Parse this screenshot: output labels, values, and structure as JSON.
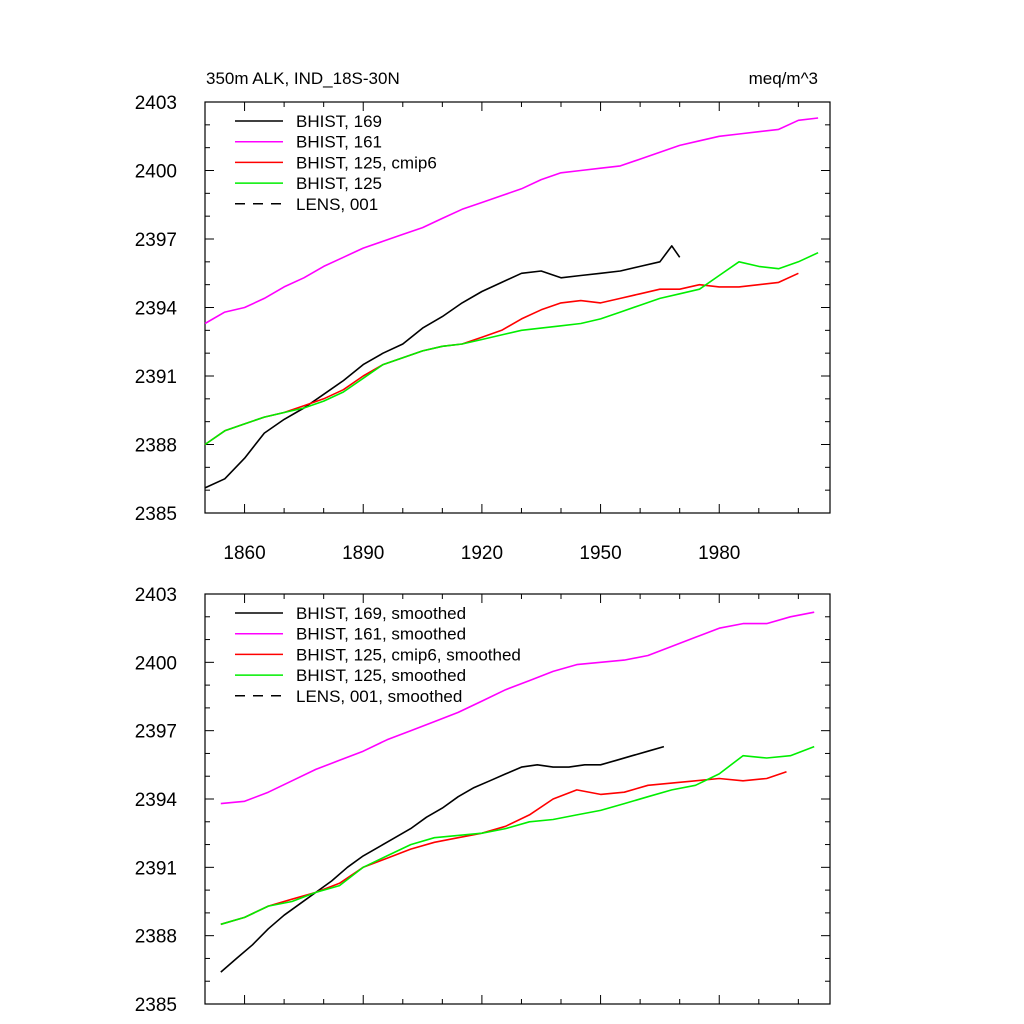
{
  "figure": {
    "title_left": "350m ALK, IND_18S-30N",
    "title_right": "meq/m^3"
  },
  "chart_data": [
    {
      "type": "line",
      "title": "350m ALK, IND_18S-30N",
      "units": "meq/m^3",
      "xlim": [
        1850,
        2008
      ],
      "ylim": [
        2385,
        2403
      ],
      "xticks": [
        1860,
        1890,
        1920,
        1950,
        1980
      ],
      "yticks": [
        2385,
        2388,
        2391,
        2394,
        2397,
        2400,
        2403
      ],
      "show_xtick_labels": true,
      "legend_position": "top-left",
      "grid": false,
      "series": [
        {
          "name": "BHIST, 169",
          "color": "#000000",
          "dash": "solid",
          "x": [
            1850,
            1855,
            1860,
            1865,
            1870,
            1875,
            1880,
            1885,
            1890,
            1895,
            1900,
            1905,
            1910,
            1915,
            1920,
            1925,
            1930,
            1935,
            1940,
            1945,
            1950,
            1955,
            1960,
            1965,
            1968,
            1970
          ],
          "y": [
            2386.1,
            2386.5,
            2387.4,
            2388.5,
            2389.1,
            2389.6,
            2390.2,
            2390.8,
            2391.5,
            2392.0,
            2392.4,
            2393.1,
            2393.6,
            2394.2,
            2394.7,
            2395.1,
            2395.5,
            2395.6,
            2395.3,
            2395.4,
            2395.5,
            2395.6,
            2395.8,
            2396.0,
            2396.7,
            2396.2
          ]
        },
        {
          "name": "BHIST, 161",
          "color": "#ff00ff",
          "dash": "solid",
          "x": [
            1850,
            1855,
            1860,
            1865,
            1870,
            1875,
            1880,
            1885,
            1890,
            1895,
            1900,
            1905,
            1910,
            1915,
            1920,
            1925,
            1930,
            1935,
            1940,
            1945,
            1950,
            1955,
            1960,
            1965,
            1970,
            1975,
            1980,
            1985,
            1990,
            1995,
            2000,
            2005
          ],
          "y": [
            2393.3,
            2393.8,
            2394.0,
            2394.4,
            2394.9,
            2395.3,
            2395.8,
            2396.2,
            2396.6,
            2396.9,
            2397.2,
            2397.5,
            2397.9,
            2398.3,
            2398.6,
            2398.9,
            2399.2,
            2399.6,
            2399.9,
            2400.0,
            2400.1,
            2400.2,
            2400.5,
            2400.8,
            2401.1,
            2401.3,
            2401.5,
            2401.6,
            2401.7,
            2401.8,
            2402.2,
            2402.3
          ]
        },
        {
          "name": "BHIST, 125, cmip6",
          "color": "#ff0000",
          "dash": "solid",
          "x": [
            1850,
            1855,
            1860,
            1865,
            1870,
            1875,
            1880,
            1885,
            1890,
            1895,
            1900,
            1905,
            1910,
            1915,
            1920,
            1925,
            1930,
            1935,
            1940,
            1945,
            1950,
            1955,
            1960,
            1965,
            1970,
            1975,
            1980,
            1985,
            1990,
            1995,
            2000
          ],
          "y": [
            2388.0,
            2388.6,
            2388.9,
            2389.2,
            2389.4,
            2389.7,
            2390.0,
            2390.4,
            2391.0,
            2391.5,
            2391.8,
            2392.1,
            2392.3,
            2392.4,
            2392.7,
            2393.0,
            2393.5,
            2393.9,
            2394.2,
            2394.3,
            2394.2,
            2394.4,
            2394.6,
            2394.8,
            2394.8,
            2395.0,
            2394.9,
            2394.9,
            2395.0,
            2395.1,
            2395.5
          ]
        },
        {
          "name": "BHIST, 125",
          "color": "#00ee00",
          "dash": "solid",
          "x": [
            1850,
            1855,
            1860,
            1865,
            1870,
            1875,
            1880,
            1885,
            1890,
            1895,
            1900,
            1905,
            1910,
            1915,
            1920,
            1925,
            1930,
            1935,
            1940,
            1945,
            1950,
            1955,
            1960,
            1965,
            1970,
            1975,
            1980,
            1985,
            1990,
            1995,
            2000,
            2005
          ],
          "y": [
            2388.0,
            2388.6,
            2388.9,
            2389.2,
            2389.4,
            2389.6,
            2389.9,
            2390.3,
            2390.9,
            2391.5,
            2391.8,
            2392.1,
            2392.3,
            2392.4,
            2392.6,
            2392.8,
            2393.0,
            2393.1,
            2393.2,
            2393.3,
            2393.5,
            2393.8,
            2394.1,
            2394.4,
            2394.6,
            2394.8,
            2395.4,
            2396.0,
            2395.8,
            2395.7,
            2396.0,
            2396.4
          ]
        }
      ],
      "legend": [
        {
          "name": "BHIST, 169",
          "color": "#000000",
          "dash": "solid"
        },
        {
          "name": "BHIST, 161",
          "color": "#ff00ff",
          "dash": "solid"
        },
        {
          "name": "BHIST, 125, cmip6",
          "color": "#ff0000",
          "dash": "solid"
        },
        {
          "name": "BHIST, 125",
          "color": "#00ee00",
          "dash": "solid"
        },
        {
          "name": "LENS, 001",
          "color": "#000000",
          "dash": "dashed"
        }
      ]
    },
    {
      "type": "line",
      "xlim": [
        1850,
        2008
      ],
      "ylim": [
        2385,
        2403
      ],
      "xticks": [
        1860,
        1890,
        1920,
        1950,
        1980
      ],
      "yticks": [
        2385,
        2388,
        2391,
        2394,
        2397,
        2400,
        2403
      ],
      "show_xtick_labels": false,
      "legend_position": "top-left",
      "grid": false,
      "series": [
        {
          "name": "BHIST, 169, smoothed",
          "color": "#000000",
          "dash": "solid",
          "x": [
            1854,
            1858,
            1862,
            1866,
            1870,
            1874,
            1878,
            1882,
            1886,
            1890,
            1894,
            1898,
            1902,
            1906,
            1910,
            1914,
            1918,
            1922,
            1926,
            1930,
            1934,
            1938,
            1942,
            1946,
            1950,
            1954,
            1958,
            1962,
            1966
          ],
          "y": [
            2386.4,
            2387.0,
            2387.6,
            2388.3,
            2388.9,
            2389.4,
            2389.9,
            2390.4,
            2391.0,
            2391.5,
            2391.9,
            2392.3,
            2392.7,
            2393.2,
            2393.6,
            2394.1,
            2394.5,
            2394.8,
            2395.1,
            2395.4,
            2395.5,
            2395.4,
            2395.4,
            2395.5,
            2395.5,
            2395.7,
            2395.9,
            2396.1,
            2396.3
          ]
        },
        {
          "name": "BHIST, 161, smoothed",
          "color": "#ff00ff",
          "dash": "solid",
          "x": [
            1854,
            1860,
            1866,
            1872,
            1878,
            1884,
            1890,
            1896,
            1902,
            1908,
            1914,
            1920,
            1926,
            1932,
            1938,
            1944,
            1950,
            1956,
            1962,
            1968,
            1974,
            1980,
            1986,
            1992,
            1998,
            2004
          ],
          "y": [
            2393.8,
            2393.9,
            2394.3,
            2394.8,
            2395.3,
            2395.7,
            2396.1,
            2396.6,
            2397.0,
            2397.4,
            2397.8,
            2398.3,
            2398.8,
            2399.2,
            2399.6,
            2399.9,
            2400.0,
            2400.1,
            2400.3,
            2400.7,
            2401.1,
            2401.5,
            2401.7,
            2401.7,
            2402.0,
            2402.2
          ]
        },
        {
          "name": "BHIST, 125, cmip6, smoothed",
          "color": "#ff0000",
          "dash": "solid",
          "x": [
            1854,
            1860,
            1866,
            1872,
            1878,
            1884,
            1890,
            1896,
            1902,
            1908,
            1914,
            1920,
            1926,
            1932,
            1938,
            1944,
            1950,
            1956,
            1962,
            1968,
            1974,
            1980,
            1986,
            1992,
            1997
          ],
          "y": [
            2388.5,
            2388.8,
            2389.3,
            2389.6,
            2389.9,
            2390.3,
            2391.0,
            2391.4,
            2391.8,
            2392.1,
            2392.3,
            2392.5,
            2392.8,
            2393.3,
            2394.0,
            2394.4,
            2394.2,
            2394.3,
            2394.6,
            2394.7,
            2394.8,
            2394.9,
            2394.8,
            2394.9,
            2395.2
          ]
        },
        {
          "name": "BHIST, 125, smoothed",
          "color": "#00ee00",
          "dash": "solid",
          "x": [
            1854,
            1860,
            1866,
            1872,
            1878,
            1884,
            1890,
            1896,
            1902,
            1908,
            1914,
            1920,
            1926,
            1932,
            1938,
            1944,
            1950,
            1956,
            1962,
            1968,
            1974,
            1980,
            1986,
            1992,
            1998,
            2004
          ],
          "y": [
            2388.5,
            2388.8,
            2389.3,
            2389.5,
            2389.9,
            2390.2,
            2391.0,
            2391.5,
            2392.0,
            2392.3,
            2392.4,
            2392.5,
            2392.7,
            2393.0,
            2393.1,
            2393.3,
            2393.5,
            2393.8,
            2394.1,
            2394.4,
            2394.6,
            2395.1,
            2395.9,
            2395.8,
            2395.9,
            2396.3
          ]
        }
      ],
      "legend": [
        {
          "name": "BHIST, 169, smoothed",
          "color": "#000000",
          "dash": "solid"
        },
        {
          "name": "BHIST, 161, smoothed",
          "color": "#ff00ff",
          "dash": "solid"
        },
        {
          "name": "BHIST, 125, cmip6, smoothed",
          "color": "#ff0000",
          "dash": "solid"
        },
        {
          "name": "BHIST, 125, smoothed",
          "color": "#00ee00",
          "dash": "solid"
        },
        {
          "name": "LENS, 001, smoothed",
          "color": "#000000",
          "dash": "dashed"
        }
      ]
    }
  ]
}
